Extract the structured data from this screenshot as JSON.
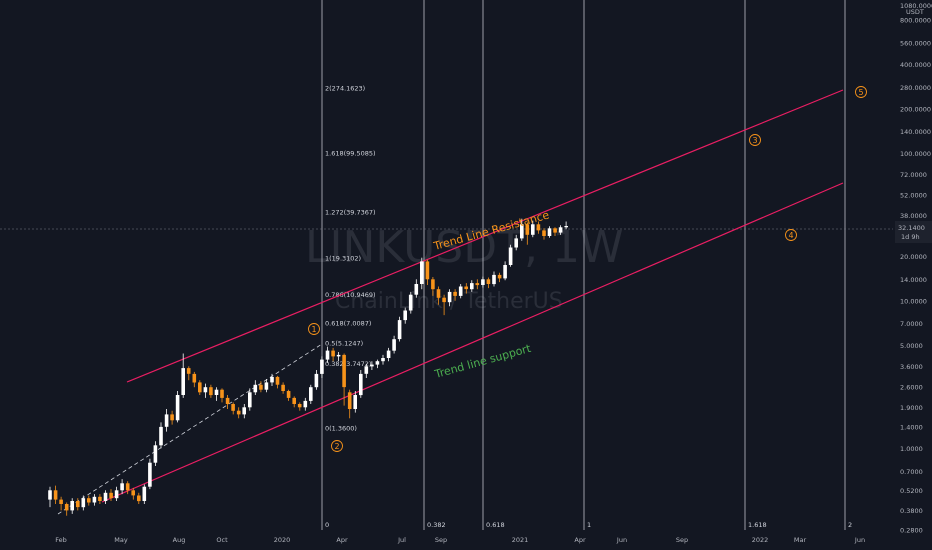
{
  "watermark": {
    "symbol": "LINKUSDT, 1W",
    "name": "ChainLink / TetherUS"
  },
  "price_axis": {
    "unit_top": "1080.0000",
    "unit": "USDT",
    "current_price": "32.1400",
    "countdown": "1d 9h"
  },
  "annotations": {
    "resistance": "Trend Line Resistance",
    "support": "Trend line support"
  },
  "colors": {
    "bull": "#ffffff",
    "bear": "#f7931a",
    "trend": "#e91e63",
    "resistance_text": "#f7931a",
    "support_text": "#4caf50",
    "wave": "#f7931a"
  },
  "chart_data": {
    "type": "candlestick",
    "yscale": "log",
    "ylim": [
      0.28,
      1080
    ],
    "y_ticks": [
      "800.0000",
      "560.0000",
      "400.0000",
      "280.0000",
      "200.0000",
      "140.0000",
      "100.0000",
      "72.0000",
      "52.0000",
      "38.0000",
      "26.0000",
      "20.0000",
      "14.0000",
      "10.0000",
      "7.0000",
      "5.0000",
      "3.6000",
      "2.6000",
      "1.9000",
      "1.4000",
      "1.0000",
      "0.7000",
      "0.5200",
      "0.3800",
      "0.2800"
    ],
    "x_ticks": [
      "Feb",
      "May",
      "Aug",
      "Oct",
      "2020",
      "Apr",
      "Jul",
      "Sep",
      "2021",
      "Apr",
      "Jun",
      "Sep",
      "2022",
      "Mar",
      "Jun"
    ],
    "fib_extension": [
      {
        "label": "0(1.3600)",
        "value": 1.36
      },
      {
        "label": "0.382(3.7472)",
        "value": 3.7472
      },
      {
        "label": "0.5(5.1247)",
        "value": 5.1247
      },
      {
        "label": "0.618(7.0087)",
        "value": 7.0087
      },
      {
        "label": "0.786(10.9469)",
        "value": 10.9469
      },
      {
        "label": "1(19.3102)",
        "value": 19.3102
      },
      {
        "label": "1.272(39.7367)",
        "value": 39.7367
      },
      {
        "label": "1.618(99.5085)",
        "value": 99.5085
      },
      {
        "label": "2(274.1623)",
        "value": 274.1623
      }
    ],
    "time_fib": [
      "0",
      "0.382",
      "0.618",
      "1",
      "1.618",
      "2"
    ],
    "waves": [
      "1",
      "2",
      "3",
      "4",
      "5"
    ],
    "candles": [
      [
        0.45,
        0.52,
        0.42,
        0.4,
        0.55
      ],
      [
        0.52,
        0.45,
        0.44,
        0.42,
        0.56
      ],
      [
        0.45,
        0.42,
        0.4,
        0.38,
        0.47
      ],
      [
        0.42,
        0.38,
        0.37,
        0.35,
        0.43
      ],
      [
        0.38,
        0.44,
        0.37,
        0.36,
        0.46
      ],
      [
        0.44,
        0.4,
        0.4,
        0.38,
        0.46
      ],
      [
        0.4,
        0.46,
        0.39,
        0.38,
        0.48
      ],
      [
        0.46,
        0.43,
        0.42,
        0.41,
        0.48
      ],
      [
        0.43,
        0.47,
        0.42,
        0.41,
        0.49
      ],
      [
        0.47,
        0.44,
        0.44,
        0.42,
        0.49
      ],
      [
        0.44,
        0.5,
        0.43,
        0.42,
        0.52
      ],
      [
        0.5,
        0.46,
        0.45,
        0.44,
        0.53
      ],
      [
        0.46,
        0.52,
        0.45,
        0.44,
        0.55
      ],
      [
        0.52,
        0.58,
        0.51,
        0.49,
        0.62
      ],
      [
        0.58,
        0.52,
        0.51,
        0.49,
        0.6
      ],
      [
        0.52,
        0.48,
        0.47,
        0.45,
        0.54
      ],
      [
        0.48,
        0.44,
        0.43,
        0.42,
        0.5
      ],
      [
        0.44,
        0.55,
        0.43,
        0.42,
        0.57
      ],
      [
        0.55,
        0.8,
        0.54,
        0.53,
        0.85
      ],
      [
        0.8,
        1.05,
        0.78,
        0.76,
        1.12
      ],
      [
        1.05,
        1.4,
        1.02,
        1.0,
        1.5
      ],
      [
        1.4,
        1.7,
        1.35,
        1.3,
        1.85
      ],
      [
        1.7,
        1.55,
        1.5,
        1.45,
        1.8
      ],
      [
        1.55,
        2.3,
        1.52,
        1.5,
        2.45
      ],
      [
        2.3,
        3.5,
        2.25,
        2.2,
        4.4
      ],
      [
        3.5,
        3.2,
        3.0,
        2.9,
        3.6
      ],
      [
        3.2,
        2.8,
        2.7,
        2.6,
        3.3
      ],
      [
        2.8,
        2.4,
        2.35,
        2.3,
        2.9
      ],
      [
        2.4,
        2.6,
        2.3,
        2.2,
        2.75
      ],
      [
        2.6,
        2.3,
        2.25,
        2.2,
        2.7
      ],
      [
        2.3,
        2.5,
        2.2,
        2.1,
        2.6
      ],
      [
        2.5,
        2.2,
        2.15,
        2.05,
        2.55
      ],
      [
        2.2,
        2.0,
        1.95,
        1.85,
        2.3
      ],
      [
        2.0,
        1.8,
        1.75,
        1.7,
        2.05
      ],
      [
        1.8,
        1.7,
        1.65,
        1.6,
        1.9
      ],
      [
        1.7,
        1.9,
        1.65,
        1.6,
        2.0
      ],
      [
        1.9,
        2.4,
        1.85,
        1.8,
        2.55
      ],
      [
        2.4,
        2.7,
        2.35,
        2.3,
        2.9
      ],
      [
        2.7,
        2.5,
        2.45,
        2.4,
        2.85
      ],
      [
        2.5,
        2.8,
        2.45,
        2.4,
        2.95
      ],
      [
        2.8,
        3.05,
        2.7,
        2.65,
        3.2
      ],
      [
        3.05,
        2.7,
        2.65,
        2.55,
        3.1
      ],
      [
        2.7,
        2.45,
        2.4,
        2.35,
        2.8
      ],
      [
        2.45,
        2.2,
        2.15,
        2.1,
        2.5
      ],
      [
        2.2,
        2.0,
        1.95,
        1.9,
        2.25
      ],
      [
        2.0,
        1.9,
        1.85,
        1.8,
        2.05
      ],
      [
        1.9,
        2.1,
        1.85,
        1.8,
        2.2
      ],
      [
        2.1,
        2.6,
        2.05,
        2.0,
        2.7
      ],
      [
        2.6,
        3.2,
        2.55,
        2.5,
        3.4
      ],
      [
        3.2,
        4.0,
        3.1,
        3.0,
        4.2
      ],
      [
        4.0,
        4.6,
        3.9,
        3.8,
        4.9
      ],
      [
        4.6,
        4.2,
        4.1,
        3.9,
        4.8
      ],
      [
        4.2,
        4.3,
        4.0,
        3.9,
        4.5
      ],
      [
        4.3,
        2.6,
        2.4,
        1.95,
        4.4
      ],
      [
        2.4,
        1.85,
        1.75,
        1.6,
        2.5
      ],
      [
        1.85,
        2.3,
        1.8,
        1.75,
        2.45
      ],
      [
        2.3,
        3.2,
        2.25,
        2.2,
        3.4
      ],
      [
        3.2,
        3.6,
        3.1,
        3.0,
        3.75
      ],
      [
        3.6,
        3.7,
        3.5,
        3.4,
        3.9
      ],
      [
        3.7,
        3.9,
        3.6,
        3.5,
        4.0
      ],
      [
        3.9,
        4.1,
        3.8,
        3.7,
        4.3
      ],
      [
        4.1,
        4.6,
        4.0,
        3.9,
        4.8
      ],
      [
        4.6,
        5.5,
        4.5,
        4.4,
        5.8
      ],
      [
        5.5,
        7.4,
        5.4,
        5.3,
        7.8
      ],
      [
        7.4,
        8.6,
        7.2,
        7.0,
        9.0
      ],
      [
        8.6,
        11.0,
        8.4,
        8.2,
        11.5
      ],
      [
        11.0,
        13.0,
        10.8,
        10.5,
        14.0
      ],
      [
        13.0,
        18.5,
        12.5,
        12.0,
        19.6
      ],
      [
        18.5,
        14.0,
        13.5,
        12.8,
        19.0
      ],
      [
        14.0,
        12.0,
        11.5,
        10.8,
        14.5
      ],
      [
        12.0,
        10.5,
        10.0,
        9.4,
        12.5
      ],
      [
        10.5,
        9.8,
        9.4,
        8.0,
        11.0
      ],
      [
        9.8,
        11.5,
        9.6,
        9.2,
        12.0
      ],
      [
        11.5,
        10.8,
        10.5,
        10.0,
        12.0
      ],
      [
        10.8,
        12.5,
        10.6,
        10.4,
        13.0
      ],
      [
        12.5,
        12.0,
        11.6,
        11.2,
        13.2
      ],
      [
        12.0,
        13.2,
        11.8,
        11.5,
        13.8
      ],
      [
        13.2,
        12.8,
        12.4,
        12.0,
        14.0
      ],
      [
        12.8,
        14.0,
        12.6,
        12.3,
        14.6
      ],
      [
        14.0,
        13.0,
        12.6,
        12.2,
        14.4
      ],
      [
        13.0,
        15.0,
        12.8,
        12.5,
        15.8
      ],
      [
        15.0,
        14.2,
        13.8,
        13.4,
        15.5
      ],
      [
        14.2,
        17.5,
        14.0,
        13.8,
        18.5
      ],
      [
        17.5,
        23.0,
        17.2,
        17.0,
        24.0
      ],
      [
        23.0,
        26.5,
        22.5,
        22.0,
        28.0
      ],
      [
        26.5,
        33.0,
        26.0,
        25.5,
        36.0
      ],
      [
        33.0,
        28.0,
        27.5,
        24.0,
        34.0
      ],
      [
        28.0,
        33.0,
        27.5,
        27.0,
        35.0
      ],
      [
        33.0,
        30.0,
        29.5,
        28.5,
        34.5
      ],
      [
        30.0,
        27.5,
        27.0,
        26.0,
        31.0
      ],
      [
        27.5,
        31.0,
        27.2,
        26.8,
        32.0
      ],
      [
        31.0,
        29.0,
        28.5,
        27.5,
        31.5
      ],
      [
        29.0,
        31.5,
        28.6,
        28.0,
        32.5
      ],
      [
        31.5,
        32.14,
        31.0,
        30.5,
        34.5
      ]
    ]
  }
}
